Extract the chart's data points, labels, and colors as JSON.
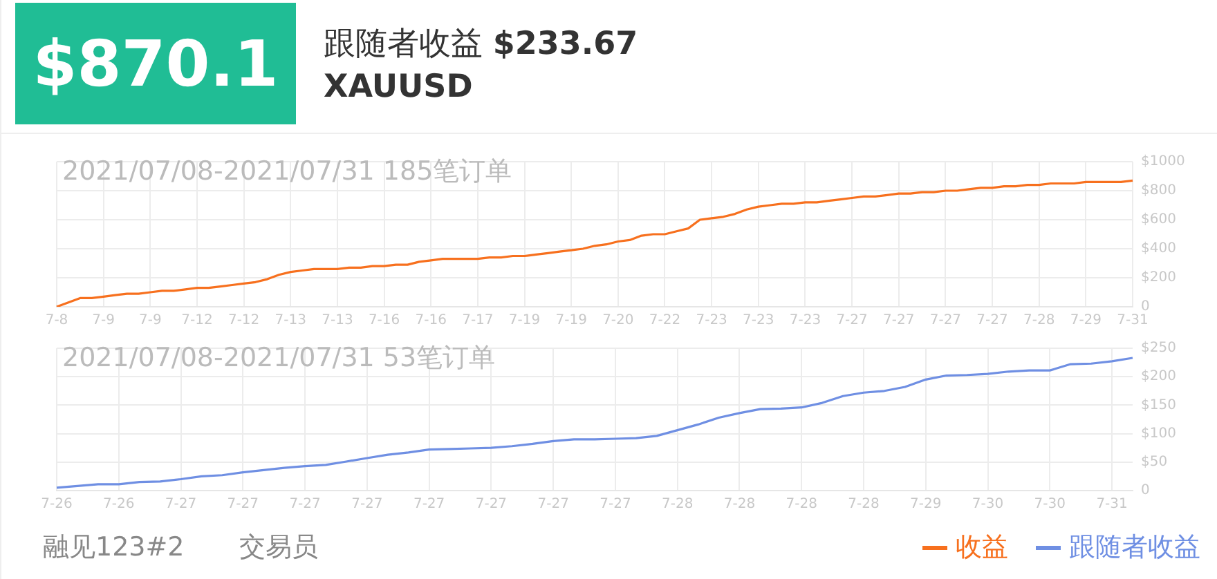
{
  "chart_data": [
    {
      "type": "other",
      "title": "$870.1",
      "annotations": [
        "跟随者收益 $233.67",
        "XAUUSD",
        "融见123#2",
        "交易员"
      ]
    },
    {
      "type": "line",
      "title": "2021/07/08-2021/07/31 185笔订单",
      "categories": [
        "7-8",
        null,
        null,
        null,
        "7-9",
        null,
        null,
        null,
        "7-9",
        null,
        null,
        null,
        "7-12",
        null,
        null,
        null,
        "7-12",
        null,
        null,
        null,
        "7-13",
        null,
        null,
        null,
        "7-13",
        null,
        null,
        null,
        "7-16",
        null,
        null,
        null,
        "7-16",
        null,
        null,
        null,
        "7-17",
        null,
        null,
        null,
        "7-19",
        null,
        null,
        null,
        "7-19",
        null,
        null,
        null,
        "7-20",
        null,
        null,
        null,
        "7-22",
        null,
        null,
        null,
        "7-23",
        null,
        null,
        null,
        "7-23",
        null,
        null,
        null,
        "7-23",
        null,
        null,
        null,
        "7-27",
        null,
        null,
        null,
        "7-27",
        null,
        null,
        null,
        "7-27",
        null,
        null,
        null,
        "7-27",
        null,
        null,
        null,
        "7-28",
        null,
        null,
        null,
        "7-29",
        null,
        null,
        null,
        "7-31"
      ],
      "series": [
        {
          "name": "收益",
          "color": "#f7701e",
          "values": [
            0,
            30,
            60,
            60,
            70,
            80,
            90,
            90,
            100,
            110,
            110,
            120,
            130,
            130,
            140,
            150,
            160,
            170,
            190,
            220,
            240,
            250,
            260,
            260,
            260,
            270,
            270,
            280,
            280,
            290,
            290,
            310,
            320,
            330,
            330,
            330,
            330,
            340,
            340,
            350,
            350,
            360,
            370,
            380,
            390,
            400,
            420,
            430,
            450,
            460,
            490,
            500,
            500,
            520,
            540,
            600,
            610,
            620,
            640,
            670,
            690,
            700,
            710,
            710,
            720,
            720,
            730,
            740,
            750,
            760,
            760,
            770,
            780,
            780,
            790,
            790,
            800,
            800,
            810,
            820,
            820,
            830,
            830,
            840,
            840,
            850,
            850,
            850,
            860,
            860,
            860,
            860,
            870
          ]
        }
      ],
      "ylim": [
        0,
        1000
      ],
      "yticks": [
        0,
        {
          "value": 200,
          "label": "$200"
        },
        {
          "value": 400,
          "label": "$400"
        },
        {
          "value": 600,
          "label": "$600"
        },
        {
          "value": 800,
          "label": "$800"
        },
        {
          "value": 1000,
          "label": "$1000"
        }
      ],
      "grid": true,
      "legend": "bottom right",
      "marker": "none"
    },
    {
      "type": "line",
      "title": "2021/07/08-2021/07/31 53笔订单",
      "categories": [
        "7-26",
        null,
        null,
        "7-26",
        null,
        null,
        "7-27",
        null,
        null,
        "7-27",
        null,
        null,
        "7-27",
        null,
        null,
        "7-27",
        null,
        null,
        "7-27",
        null,
        null,
        "7-27",
        null,
        null,
        "7-27",
        null,
        null,
        "7-27",
        null,
        null,
        "7-28",
        null,
        null,
        "7-28",
        null,
        null,
        "7-28",
        null,
        null,
        "7-28",
        null,
        null,
        "7-29",
        null,
        null,
        "7-30",
        null,
        null,
        "7-30",
        null,
        null,
        "7-31",
        null
      ],
      "series": [
        {
          "name": "跟随者收益",
          "color": "#6f8fe3",
          "values": [
            5,
            8,
            11,
            11,
            15,
            16,
            20,
            25,
            27,
            32,
            36,
            40,
            43,
            45,
            51,
            57,
            63,
            67,
            72,
            73,
            74,
            75,
            78,
            82,
            87,
            90,
            90,
            91,
            92,
            96,
            106,
            116,
            128,
            136,
            143,
            144,
            146,
            154,
            166,
            172,
            175,
            182,
            195,
            202,
            203,
            205,
            209,
            211,
            211,
            222,
            223,
            227,
            233
          ]
        }
      ],
      "ylim": [
        0,
        250
      ],
      "yticks": [
        0,
        {
          "value": 50,
          "label": "$50"
        },
        {
          "value": 100,
          "label": "$100"
        },
        {
          "value": 150,
          "label": "$150"
        },
        {
          "value": 200,
          "label": "$200"
        },
        {
          "value": 250,
          "label": "$250"
        }
      ],
      "grid": true,
      "legend": "bottom right",
      "marker": "none"
    }
  ]
}
